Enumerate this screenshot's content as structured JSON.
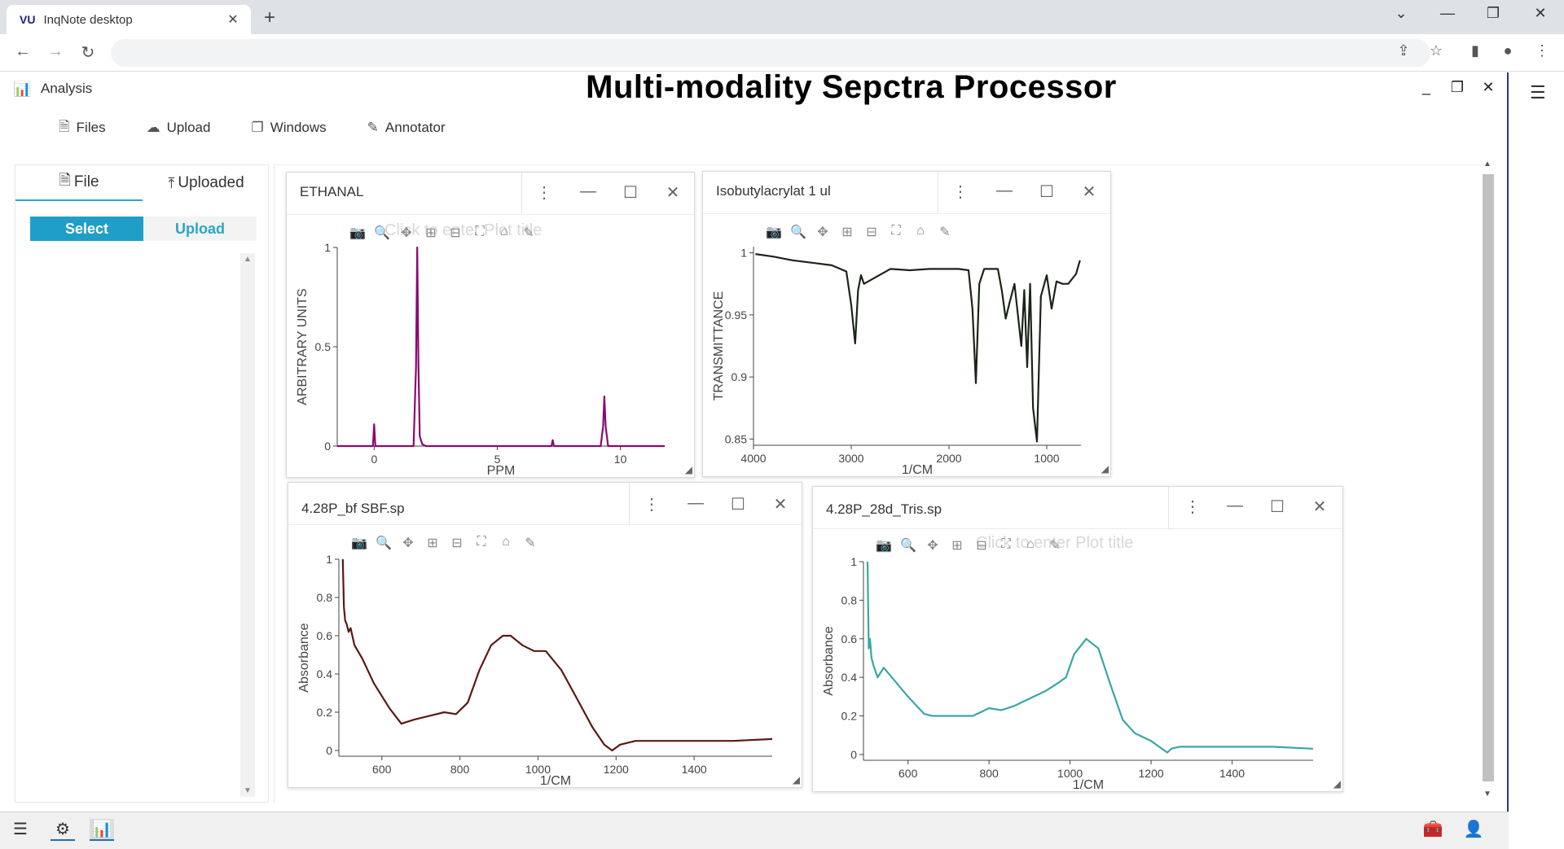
{
  "browser": {
    "favicon": "VU",
    "tab_title": "InqNote desktop",
    "tab_close": "✕",
    "new_tab": "+",
    "address": ""
  },
  "app": {
    "section": "Analysis",
    "title": "Multi-modality Sepctra Processor",
    "menu": [
      {
        "label": "Files",
        "icon": "file-icon"
      },
      {
        "label": "Upload",
        "icon": "cloud-upload-icon"
      },
      {
        "label": "Windows",
        "icon": "windows-icon"
      },
      {
        "label": "Annotator",
        "icon": "annotator-icon"
      }
    ]
  },
  "left_panel": {
    "tabs": [
      "File",
      "Uploaded"
    ],
    "active_tab": "File",
    "buttons": {
      "select": "Select",
      "upload": "Upload"
    }
  },
  "windows": [
    {
      "title": "ETHANAL",
      "ghost_title": "Click to enter Plot title"
    },
    {
      "title": "Isobutylacrylat 1 ul",
      "ghost_title": ""
    },
    {
      "title": "4.28P_bf SBF.sp",
      "ghost_title": ""
    },
    {
      "title": "4.28P_28d_Tris.sp",
      "ghost_title": "Click to enter Plot title"
    }
  ],
  "chart_data": [
    {
      "type": "line",
      "title": "",
      "xlabel": "PPM",
      "ylabel": "ARBITRARY UNITS",
      "xlim": [
        -1.5,
        11.8
      ],
      "ylim": [
        0,
        1
      ],
      "xticks": [
        0,
        5,
        10
      ],
      "yticks": [
        0,
        0.5,
        1
      ],
      "color": "#8b0a6e",
      "series": [
        {
          "x": [
            -1.5,
            -0.05,
            0,
            0.05,
            1.6,
            1.7,
            1.75,
            1.8,
            1.85,
            1.95,
            2.1,
            5,
            7.2,
            7.25,
            7.3,
            9.2,
            9.3,
            9.35,
            9.4,
            9.5,
            11.8
          ],
          "y": [
            0,
            0,
            0.11,
            0,
            0,
            0.4,
            1.0,
            0.4,
            0.05,
            0.01,
            0,
            0,
            0,
            0.03,
            0,
            0,
            0.1,
            0.25,
            0.1,
            0,
            0
          ]
        }
      ]
    },
    {
      "type": "line",
      "title": "",
      "xlabel": "1/CM",
      "ylabel": "TRANSMITTANCE",
      "xlim": [
        4000,
        650
      ],
      "ylim": [
        0.845,
        1.005
      ],
      "xticks": [
        4000,
        3000,
        2000,
        1000
      ],
      "yticks": [
        0.85,
        0.9,
        0.95,
        1
      ],
      "color": "#1b2418",
      "series": [
        {
          "x": [
            3980,
            3800,
            3600,
            3400,
            3200,
            3050,
            3000,
            2960,
            2930,
            2900,
            2870,
            2600,
            2400,
            2200,
            1900,
            1800,
            1760,
            1725,
            1690,
            1640,
            1600,
            1500,
            1460,
            1420,
            1380,
            1330,
            1260,
            1230,
            1200,
            1170,
            1140,
            1100,
            1060,
            1000,
            950,
            900,
            840,
            780,
            700,
            660
          ],
          "y": [
            0.999,
            0.997,
            0.994,
            0.992,
            0.99,
            0.985,
            0.958,
            0.927,
            0.97,
            0.982,
            0.975,
            0.987,
            0.986,
            0.987,
            0.987,
            0.986,
            0.955,
            0.895,
            0.975,
            0.987,
            0.987,
            0.987,
            0.97,
            0.947,
            0.96,
            0.975,
            0.925,
            0.97,
            0.908,
            0.975,
            0.875,
            0.848,
            0.965,
            0.982,
            0.955,
            0.977,
            0.975,
            0.975,
            0.983,
            0.994
          ]
        }
      ]
    },
    {
      "type": "line",
      "title": "",
      "xlabel": "1/CM",
      "ylabel": "Absorbance",
      "xlim": [
        490,
        1600
      ],
      "ylim": [
        -0.03,
        1.0
      ],
      "xticks": [
        600,
        800,
        1000,
        1200,
        1400
      ],
      "yticks": [
        0,
        0.2,
        0.4,
        0.6,
        0.8,
        1
      ],
      "color": "#5a1a12",
      "series": [
        {
          "x": [
            500,
            503,
            506,
            510,
            515,
            520,
            530,
            550,
            580,
            620,
            650,
            680,
            720,
            760,
            790,
            820,
            850,
            880,
            910,
            930,
            960,
            990,
            1020,
            1060,
            1100,
            1140,
            1170,
            1190,
            1210,
            1250,
            1300,
            1400,
            1500,
            1600
          ],
          "y": [
            1.0,
            0.75,
            0.68,
            0.66,
            0.62,
            0.64,
            0.55,
            0.48,
            0.35,
            0.22,
            0.14,
            0.16,
            0.18,
            0.2,
            0.19,
            0.25,
            0.42,
            0.55,
            0.6,
            0.6,
            0.55,
            0.52,
            0.52,
            0.42,
            0.27,
            0.12,
            0.03,
            0.0,
            0.03,
            0.05,
            0.05,
            0.05,
            0.05,
            0.06
          ]
        }
      ]
    },
    {
      "type": "line",
      "title": "",
      "xlabel": "1/CM",
      "ylabel": "Absorbance",
      "xlim": [
        490,
        1600
      ],
      "ylim": [
        -0.03,
        1.0
      ],
      "xticks": [
        600,
        800,
        1000,
        1200,
        1400
      ],
      "yticks": [
        0,
        0.2,
        0.4,
        0.6,
        0.8,
        1
      ],
      "color": "#3aa6a6",
      "series": [
        {
          "x": [
            500,
            503,
            506,
            510,
            515,
            525,
            540,
            560,
            600,
            640,
            660,
            700,
            760,
            800,
            830,
            860,
            900,
            940,
            970,
            990,
            1010,
            1040,
            1070,
            1100,
            1130,
            1160,
            1200,
            1240,
            1250,
            1270,
            1300,
            1400,
            1500,
            1600
          ],
          "y": [
            1.0,
            0.55,
            0.6,
            0.5,
            0.46,
            0.4,
            0.45,
            0.4,
            0.3,
            0.21,
            0.2,
            0.2,
            0.2,
            0.24,
            0.23,
            0.25,
            0.29,
            0.33,
            0.37,
            0.4,
            0.52,
            0.6,
            0.55,
            0.36,
            0.18,
            0.11,
            0.07,
            0.01,
            0.03,
            0.04,
            0.04,
            0.04,
            0.04,
            0.03
          ]
        }
      ]
    }
  ],
  "icons": {
    "back": "back-arrow-icon",
    "forward": "forward-arrow-icon",
    "reload": "reload-icon",
    "share": "share-icon",
    "star": "bookmark-star-icon",
    "sidebar": "side-panel-icon",
    "profile": "profile-icon",
    "kebab": "kebab-menu-icon"
  }
}
